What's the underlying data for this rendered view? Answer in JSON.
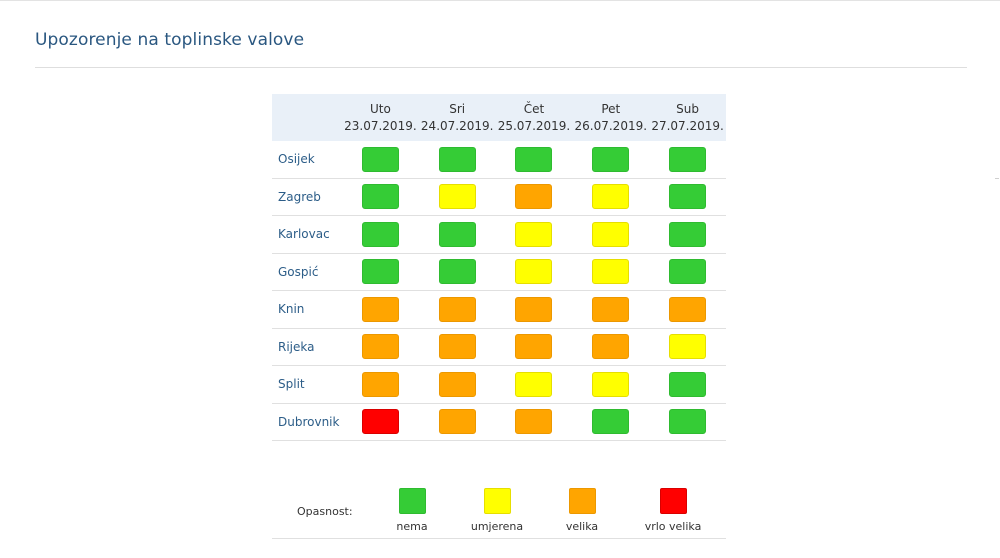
{
  "page": {
    "title": "Upozorenje na toplinske valove"
  },
  "days": [
    {
      "name": "Uto",
      "date": "23.07.2019."
    },
    {
      "name": "Sri",
      "date": "24.07.2019."
    },
    {
      "name": "Čet",
      "date": "25.07.2019."
    },
    {
      "name": "Pet",
      "date": "26.07.2019."
    },
    {
      "name": "Sub",
      "date": "27.07.2019."
    }
  ],
  "cities": [
    {
      "name": "Osijek",
      "levels": [
        0,
        0,
        0,
        0,
        0
      ]
    },
    {
      "name": "Zagreb",
      "levels": [
        0,
        1,
        2,
        1,
        0
      ]
    },
    {
      "name": "Karlovac",
      "levels": [
        0,
        0,
        1,
        1,
        0
      ]
    },
    {
      "name": "Gospić",
      "levels": [
        0,
        0,
        1,
        1,
        0
      ]
    },
    {
      "name": "Knin",
      "levels": [
        2,
        2,
        2,
        2,
        2
      ]
    },
    {
      "name": "Rijeka",
      "levels": [
        2,
        2,
        2,
        2,
        1
      ]
    },
    {
      "name": "Split",
      "levels": [
        2,
        2,
        1,
        1,
        0
      ]
    },
    {
      "name": "Dubrovnik",
      "levels": [
        3,
        2,
        2,
        0,
        0
      ]
    }
  ],
  "legend": {
    "label": "Opasnost:",
    "items": [
      {
        "label": "nema",
        "color": "#35cc36"
      },
      {
        "label": "umjerena",
        "color": "#ffff00"
      },
      {
        "label": "velika",
        "color": "#ffa500"
      },
      {
        "label": "vrlo velika",
        "color": "#ff0000"
      }
    ]
  },
  "colors": {
    "title": "#2a5780",
    "city_link": "#2c5d88",
    "header_bg": "#e9f0f8"
  }
}
